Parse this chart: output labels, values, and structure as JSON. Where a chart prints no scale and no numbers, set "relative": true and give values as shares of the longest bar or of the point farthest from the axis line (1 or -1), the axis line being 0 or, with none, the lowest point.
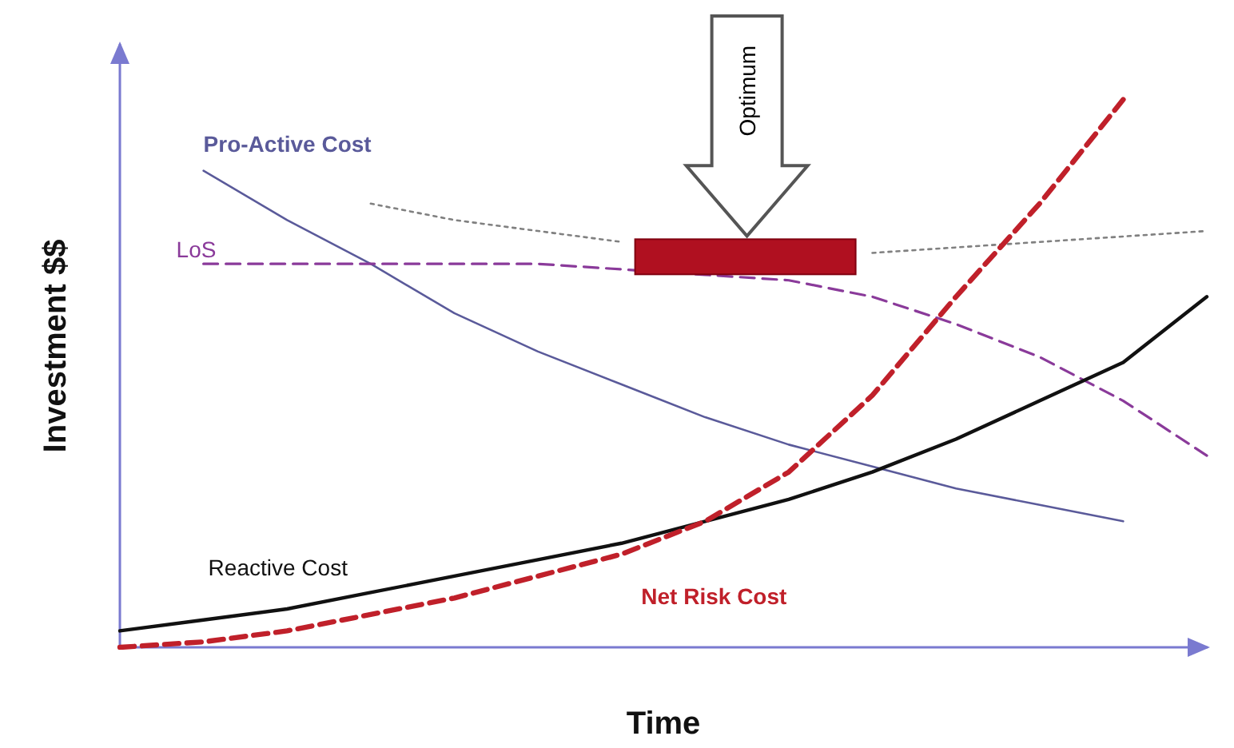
{
  "chart_data": {
    "type": "line",
    "relative": true,
    "xlabel": "Time",
    "ylabel": "Investment $$",
    "categories": [
      null,
      null,
      null,
      null,
      null,
      null,
      null,
      null,
      null,
      null,
      null,
      null,
      null,
      null
    ],
    "series": [
      {
        "name": "Pro-Active Cost",
        "color": "#5a5a9a",
        "line_style": "solid",
        "values": [
          null,
          0.87,
          0.78,
          0.7,
          0.61,
          0.54,
          0.48,
          0.42,
          0.37,
          0.33,
          0.29,
          0.26,
          0.23,
          null
        ]
      },
      {
        "color": "#808080",
        "line_style": "dotted",
        "values": [
          null,
          null,
          null,
          0.81,
          0.78,
          0.76,
          0.74,
          null,
          null,
          0.72,
          0.73,
          0.74,
          0.75,
          0.76
        ]
      },
      {
        "name": "LoS",
        "color": "#8a3a9a",
        "line_style": "dashed",
        "values": [
          null,
          0.7,
          0.7,
          0.7,
          0.7,
          0.7,
          0.69,
          0.68,
          0.67,
          0.64,
          0.59,
          0.53,
          0.45,
          0.35
        ]
      },
      {
        "name": "Reactive Cost",
        "color": "#111111",
        "line_style": "solid",
        "values": [
          0.03,
          0.05,
          0.07,
          0.1,
          0.13,
          0.16,
          0.19,
          0.23,
          0.27,
          0.32,
          0.38,
          0.45,
          0.52,
          0.64
        ]
      },
      {
        "name": "Net Risk Cost",
        "color": "#c0202a",
        "line_style": "dashed",
        "values": [
          0,
          0.01,
          0.03,
          0.06,
          0.09,
          0.13,
          0.17,
          0.23,
          0.32,
          0.46,
          0.64,
          0.81,
          1.0,
          null
        ]
      }
    ],
    "annotations": [
      "Optimum"
    ],
    "legend": false,
    "marker": "none",
    "grid": false
  }
}
